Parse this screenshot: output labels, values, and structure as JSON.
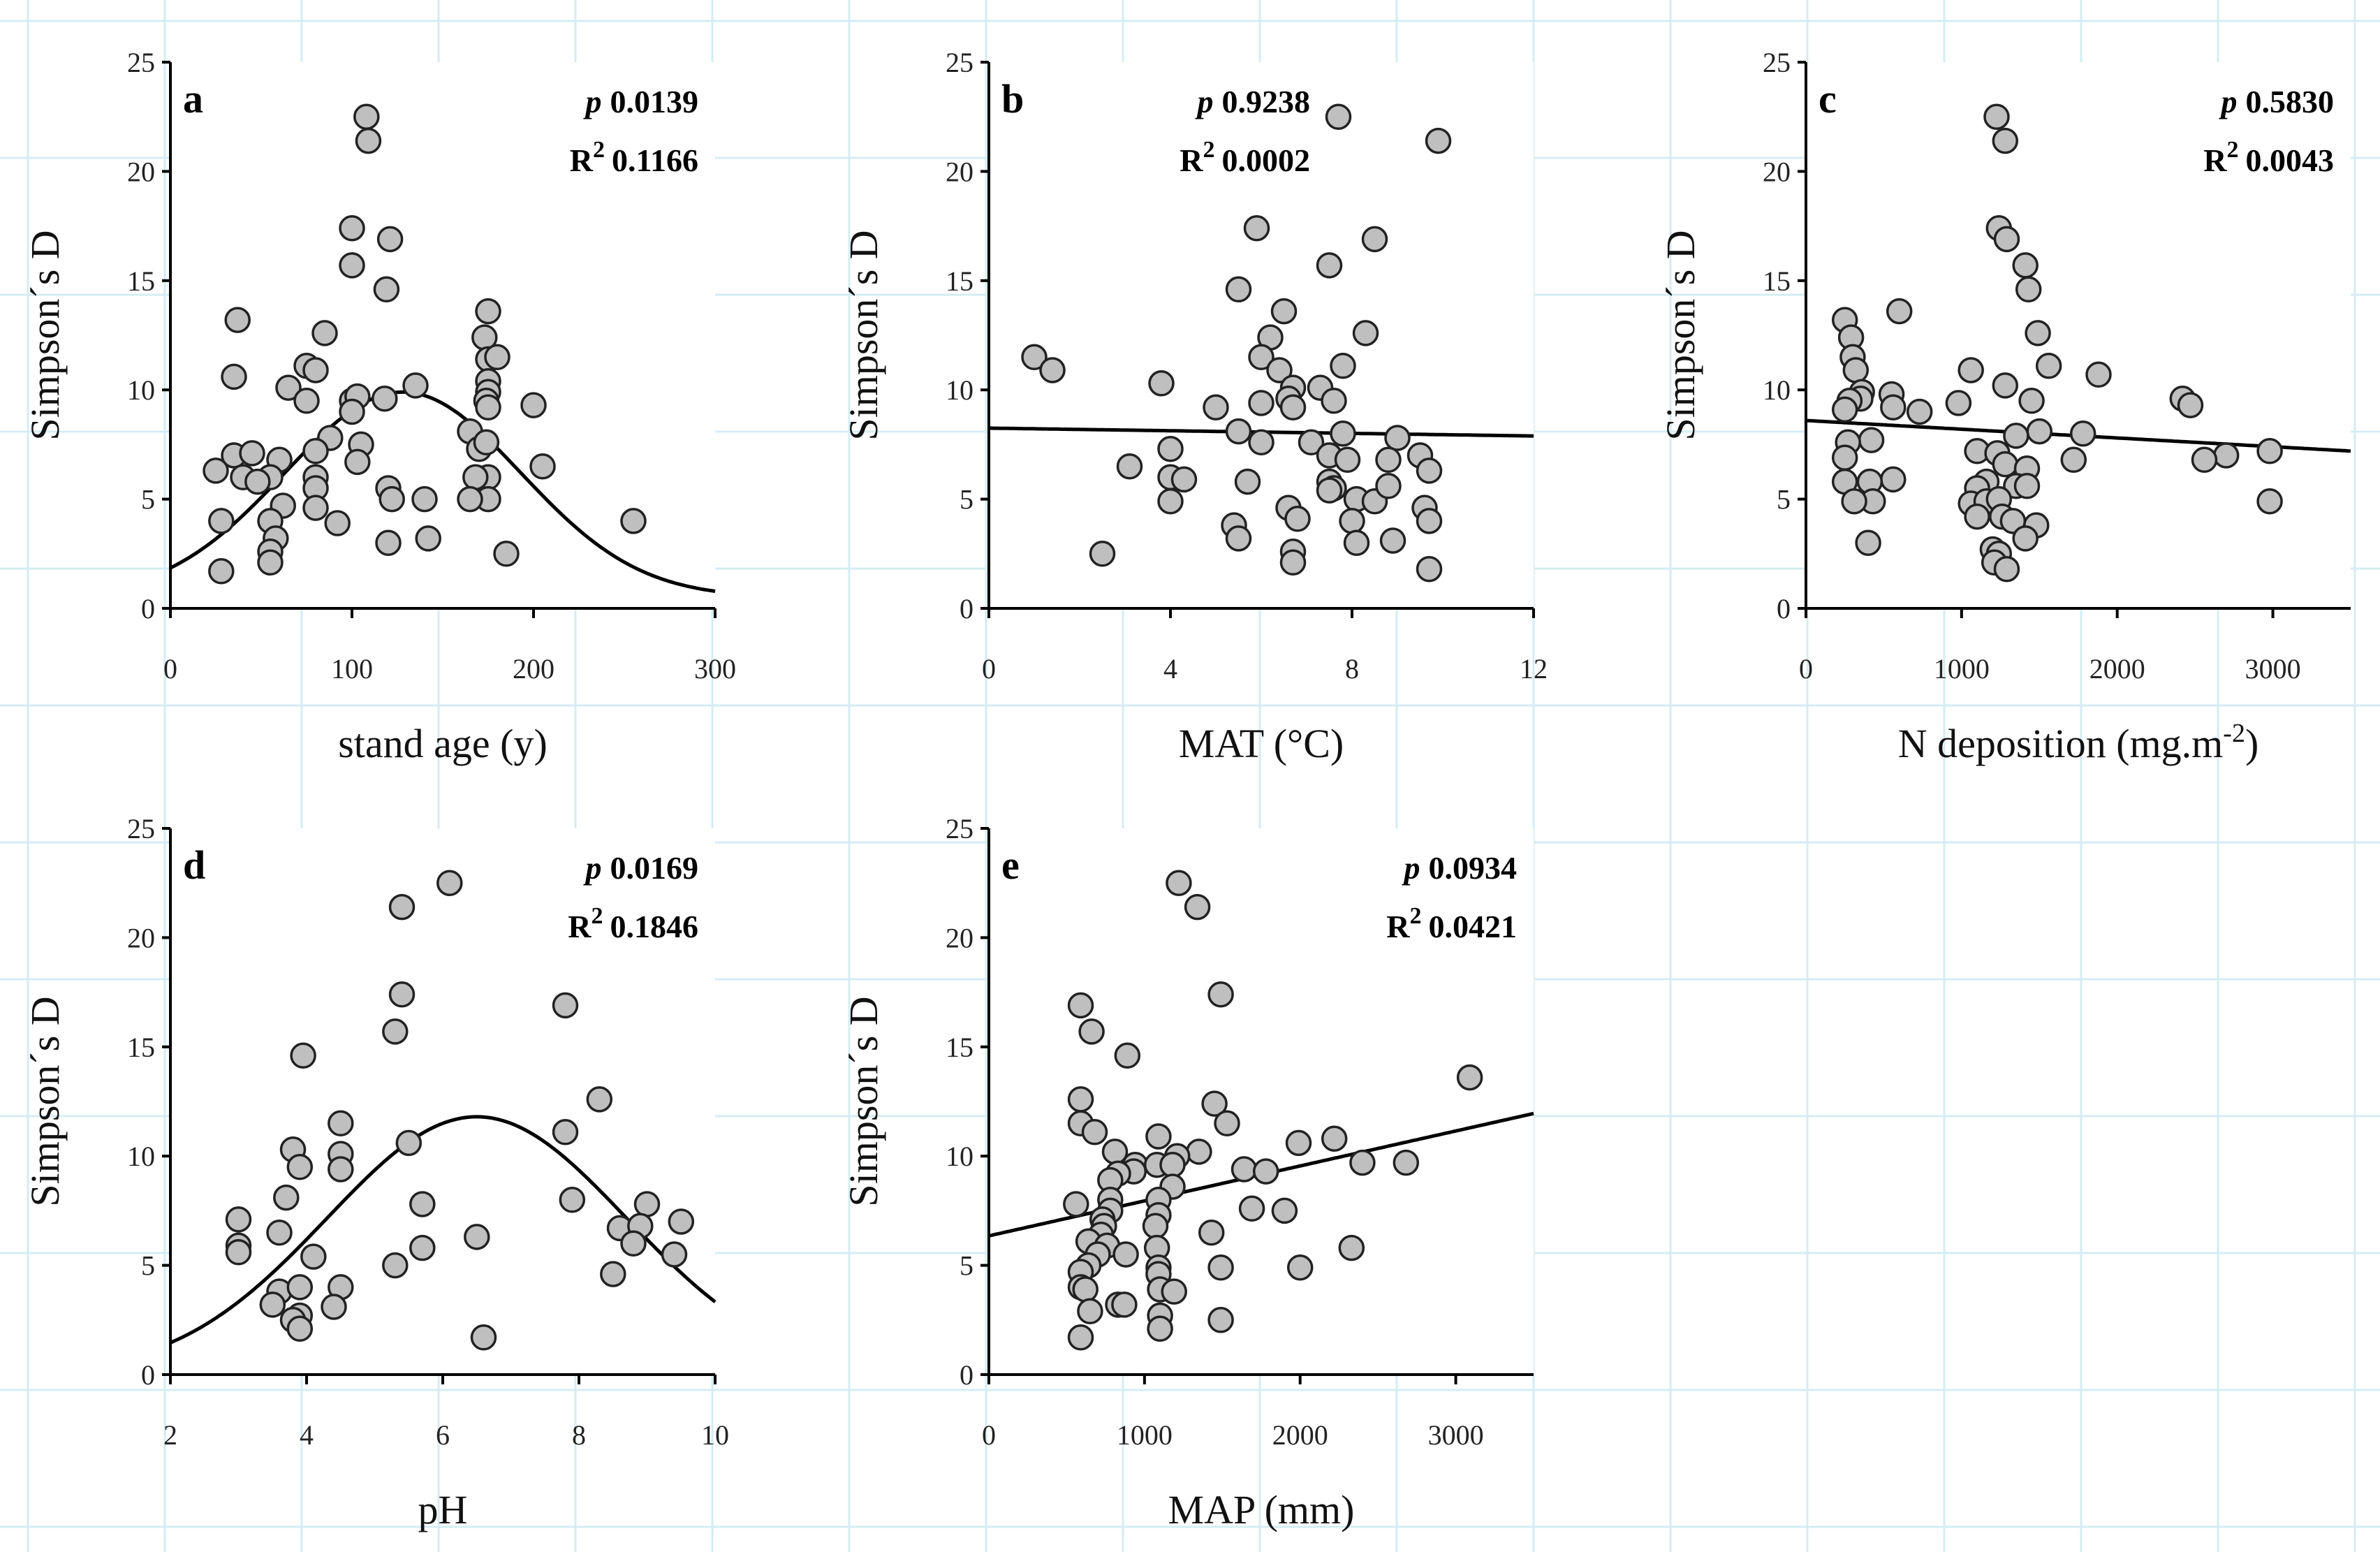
{
  "figure": {
    "background_grid_color": "#d4ecf4"
  },
  "chart_data": [
    {
      "panel": "a",
      "type": "scatter",
      "ylabel": "Simpson´s D",
      "xlabel": "stand age (y)",
      "xlim": [
        0,
        300
      ],
      "ylim": [
        0,
        25
      ],
      "xticks": [
        0,
        100,
        200,
        300
      ],
      "yticks": [
        0,
        5,
        10,
        15,
        20,
        25
      ],
      "stats": {
        "p_label": "p",
        "p_value": "0.0139",
        "r2_label": "R",
        "r2_exp": "2",
        "r2_value": "0.1166",
        "align": "right"
      },
      "fit": {
        "type": "gaussian",
        "y0": 0.5,
        "a": 9.4,
        "mu": 128,
        "sigma": 65
      },
      "points": [
        [
          108,
          22.5
        ],
        [
          109,
          21.4
        ],
        [
          100,
          17.4
        ],
        [
          121,
          16.9
        ],
        [
          100,
          15.7
        ],
        [
          119,
          14.6
        ],
        [
          37,
          13.2
        ],
        [
          175,
          13.6
        ],
        [
          173,
          12.4
        ],
        [
          85,
          12.6
        ],
        [
          35,
          10.6
        ],
        [
          175,
          11.4
        ],
        [
          180,
          11.5
        ],
        [
          75,
          11.1
        ],
        [
          80,
          10.9
        ],
        [
          65,
          10.1
        ],
        [
          135,
          10.2
        ],
        [
          175,
          10.4
        ],
        [
          175,
          9.9
        ],
        [
          174,
          9.5
        ],
        [
          175,
          9.2
        ],
        [
          100,
          9.5
        ],
        [
          118,
          9.6
        ],
        [
          103,
          9.7
        ],
        [
          75,
          9.5
        ],
        [
          200,
          9.3
        ],
        [
          100,
          9.0
        ],
        [
          165,
          8.1
        ],
        [
          88,
          7.8
        ],
        [
          105,
          7.5
        ],
        [
          80,
          7.2
        ],
        [
          170,
          7.3
        ],
        [
          174,
          7.6
        ],
        [
          35,
          7.0
        ],
        [
          45,
          7.1
        ],
        [
          205,
          6.5
        ],
        [
          60,
          6.8
        ],
        [
          103,
          6.7
        ],
        [
          25,
          6.3
        ],
        [
          40,
          6.0
        ],
        [
          55,
          6.0
        ],
        [
          48,
          5.8
        ],
        [
          80,
          6.0
        ],
        [
          120,
          5.5
        ],
        [
          175,
          6.0
        ],
        [
          168,
          6.0
        ],
        [
          80,
          5.5
        ],
        [
          62,
          4.7
        ],
        [
          80,
          4.6
        ],
        [
          122,
          5.0
        ],
        [
          140,
          5.0
        ],
        [
          175,
          5.0
        ],
        [
          255,
          4.0
        ],
        [
          28,
          4.0
        ],
        [
          55,
          4.0
        ],
        [
          92,
          3.9
        ],
        [
          58,
          3.2
        ],
        [
          120,
          3.0
        ],
        [
          142,
          3.2
        ],
        [
          55,
          2.6
        ],
        [
          55,
          2.1
        ],
        [
          185,
          2.5
        ],
        [
          28,
          1.7
        ],
        [
          165,
          5.0
        ]
      ]
    },
    {
      "panel": "b",
      "type": "scatter",
      "ylabel": "Simpson´s D",
      "xlabel": "MAT (°C)",
      "xlim": [
        0,
        12
      ],
      "ylim": [
        0,
        25
      ],
      "xticks": [
        0,
        4,
        8,
        12
      ],
      "yticks": [
        0,
        5,
        10,
        15,
        20,
        25
      ],
      "stats": {
        "p_label": "p",
        "p_value": "0.9238",
        "r2_label": "R",
        "r2_exp": "2",
        "r2_value": "0.0002",
        "align": "left"
      },
      "fit": {
        "type": "linear",
        "intercept": 8.25,
        "slope": -0.03
      },
      "points": [
        [
          7.7,
          22.5
        ],
        [
          9.9,
          21.4
        ],
        [
          5.9,
          17.4
        ],
        [
          8.5,
          16.9
        ],
        [
          7.5,
          15.7
        ],
        [
          5.5,
          14.6
        ],
        [
          6.5,
          13.6
        ],
        [
          8.3,
          12.6
        ],
        [
          6.2,
          12.4
        ],
        [
          1.0,
          11.5
        ],
        [
          6.0,
          11.5
        ],
        [
          1.4,
          10.9
        ],
        [
          6.4,
          10.9
        ],
        [
          7.8,
          11.1
        ],
        [
          3.8,
          10.3
        ],
        [
          6.7,
          10.1
        ],
        [
          7.3,
          10.1
        ],
        [
          6.6,
          9.6
        ],
        [
          7.6,
          9.5
        ],
        [
          5.0,
          9.2
        ],
        [
          6.7,
          9.2
        ],
        [
          6.0,
          9.4
        ],
        [
          5.5,
          8.1
        ],
        [
          7.8,
          8.0
        ],
        [
          9.0,
          7.8
        ],
        [
          6.0,
          7.6
        ],
        [
          7.1,
          7.6
        ],
        [
          4.0,
          7.3
        ],
        [
          7.5,
          7.0
        ],
        [
          7.9,
          6.8
        ],
        [
          9.5,
          7.0
        ],
        [
          8.8,
          6.8
        ],
        [
          9.7,
          6.3
        ],
        [
          3.1,
          6.5
        ],
        [
          4.0,
          6.0
        ],
        [
          4.3,
          5.9
        ],
        [
          5.7,
          5.8
        ],
        [
          7.5,
          5.8
        ],
        [
          7.6,
          5.5
        ],
        [
          7.5,
          5.4
        ],
        [
          8.1,
          5.0
        ],
        [
          8.5,
          4.9
        ],
        [
          8.8,
          5.6
        ],
        [
          4.0,
          4.9
        ],
        [
          6.6,
          4.6
        ],
        [
          6.8,
          4.1
        ],
        [
          9.6,
          4.6
        ],
        [
          5.4,
          3.8
        ],
        [
          8.0,
          4.0
        ],
        [
          9.7,
          4.0
        ],
        [
          5.5,
          3.2
        ],
        [
          8.1,
          3.0
        ],
        [
          8.9,
          3.1
        ],
        [
          2.5,
          2.5
        ],
        [
          6.7,
          2.6
        ],
        [
          6.7,
          2.1
        ],
        [
          9.7,
          1.8
        ]
      ]
    },
    {
      "panel": "c",
      "type": "scatter",
      "ylabel": "Simpson´s D",
      "xlabel": "N deposition (mg.m",
      "xlabel_sup": "-2",
      "xlabel_close": ")",
      "xlim": [
        0,
        3500
      ],
      "ylim": [
        0,
        25
      ],
      "xticks": [
        0,
        1000,
        2000,
        3000
      ],
      "yticks": [
        0,
        5,
        10,
        15,
        20,
        25
      ],
      "stats": {
        "p_label": "p",
        "p_value": "0.5830",
        "r2_label": "R",
        "r2_exp": "2",
        "r2_value": "0.0043",
        "align": "right"
      },
      "fit": {
        "type": "linear",
        "intercept": 8.6,
        "slope": -0.0004
      },
      "points": [
        [
          1225,
          22.5
        ],
        [
          1280,
          21.4
        ],
        [
          1240,
          17.4
        ],
        [
          1290,
          16.9
        ],
        [
          1410,
          15.7
        ],
        [
          1430,
          14.6
        ],
        [
          250,
          13.2
        ],
        [
          600,
          13.6
        ],
        [
          290,
          12.4
        ],
        [
          1490,
          12.6
        ],
        [
          300,
          11.5
        ],
        [
          1560,
          11.1
        ],
        [
          320,
          10.9
        ],
        [
          1060,
          10.9
        ],
        [
          1880,
          10.7
        ],
        [
          1280,
          10.2
        ],
        [
          360,
          9.9
        ],
        [
          550,
          9.8
        ],
        [
          350,
          9.6
        ],
        [
          2420,
          9.6
        ],
        [
          280,
          9.5
        ],
        [
          980,
          9.4
        ],
        [
          1450,
          9.5
        ],
        [
          2470,
          9.3
        ],
        [
          250,
          9.1
        ],
        [
          560,
          9.2
        ],
        [
          730,
          9.0
        ],
        [
          420,
          7.7
        ],
        [
          1500,
          8.1
        ],
        [
          1780,
          8.0
        ],
        [
          1350,
          7.9
        ],
        [
          270,
          7.6
        ],
        [
          1100,
          7.2
        ],
        [
          1230,
          7.1
        ],
        [
          2700,
          7.0
        ],
        [
          2980,
          7.2
        ],
        [
          1720,
          6.8
        ],
        [
          2560,
          6.8
        ],
        [
          250,
          6.9
        ],
        [
          1280,
          6.6
        ],
        [
          1420,
          6.4
        ],
        [
          560,
          5.9
        ],
        [
          410,
          5.8
        ],
        [
          250,
          5.8
        ],
        [
          1160,
          5.8
        ],
        [
          1100,
          5.5
        ],
        [
          1350,
          5.6
        ],
        [
          1420,
          5.6
        ],
        [
          1060,
          4.8
        ],
        [
          430,
          4.9
        ],
        [
          310,
          4.9
        ],
        [
          1160,
          4.9
        ],
        [
          1240,
          5.0
        ],
        [
          2980,
          4.9
        ],
        [
          1100,
          4.2
        ],
        [
          1260,
          4.2
        ],
        [
          1330,
          4.0
        ],
        [
          1480,
          3.8
        ],
        [
          400,
          3.0
        ],
        [
          1410,
          3.2
        ],
        [
          1200,
          2.7
        ],
        [
          1240,
          2.5
        ],
        [
          1210,
          2.1
        ],
        [
          1290,
          1.8
        ]
      ]
    },
    {
      "panel": "d",
      "type": "scatter",
      "ylabel": "Simpson´s D",
      "xlabel": "pH",
      "xlim": [
        2,
        10
      ],
      "ylim": [
        0,
        25
      ],
      "xticks": [
        2,
        4,
        6,
        8,
        10
      ],
      "yticks": [
        0,
        5,
        10,
        15,
        20,
        25
      ],
      "stats": {
        "p_label": "p",
        "p_value": "0.0169",
        "r2_label": "R",
        "r2_exp": "2",
        "r2_value": "0.1846",
        "align": "right"
      },
      "fit": {
        "type": "gaussian",
        "y0": 0,
        "a": 11.8,
        "mu": 6.5,
        "sigma": 2.2
      },
      "points": [
        [
          6.1,
          22.5
        ],
        [
          5.4,
          21.4
        ],
        [
          5.4,
          17.4
        ],
        [
          7.8,
          16.9
        ],
        [
          5.3,
          15.7
        ],
        [
          3.95,
          14.6
        ],
        [
          8.3,
          12.6
        ],
        [
          4.5,
          11.5
        ],
        [
          7.8,
          11.1
        ],
        [
          5.5,
          10.6
        ],
        [
          3.8,
          10.3
        ],
        [
          4.5,
          10.1
        ],
        [
          3.9,
          9.5
        ],
        [
          4.5,
          9.4
        ],
        [
          3.7,
          8.1
        ],
        [
          7.9,
          8.0
        ],
        [
          5.7,
          7.8
        ],
        [
          9.0,
          7.8
        ],
        [
          3.0,
          7.1
        ],
        [
          9.5,
          7.0
        ],
        [
          8.6,
          6.7
        ],
        [
          8.9,
          6.8
        ],
        [
          3.6,
          6.5
        ],
        [
          6.5,
          6.3
        ],
        [
          3.0,
          5.9
        ],
        [
          3.0,
          5.6
        ],
        [
          5.7,
          5.8
        ],
        [
          8.8,
          6.0
        ],
        [
          9.4,
          5.5
        ],
        [
          4.1,
          5.4
        ],
        [
          5.3,
          5.0
        ],
        [
          8.5,
          4.6
        ],
        [
          3.6,
          3.8
        ],
        [
          3.9,
          4.0
        ],
        [
          4.5,
          4.0
        ],
        [
          3.5,
          3.2
        ],
        [
          4.4,
          3.1
        ],
        [
          3.9,
          2.7
        ],
        [
          3.8,
          2.5
        ],
        [
          3.9,
          2.1
        ],
        [
          6.6,
          1.7
        ]
      ]
    },
    {
      "panel": "e",
      "type": "scatter",
      "ylabel": "Simpson´s D",
      "xlabel": "MAP (mm)",
      "xlim": [
        0,
        3500
      ],
      "ylim": [
        0,
        25
      ],
      "xticks": [
        0,
        1000,
        2000,
        3000
      ],
      "yticks": [
        0,
        5,
        10,
        15,
        20,
        25
      ],
      "stats": {
        "p_label": "p",
        "p_value": "0.0934",
        "r2_label": "R",
        "r2_exp": "2",
        "r2_value": "0.0421",
        "align": "right"
      },
      "fit": {
        "type": "linear",
        "intercept": 6.35,
        "slope": 0.0016
      },
      "points": [
        [
          1220,
          22.5
        ],
        [
          1340,
          21.4
        ],
        [
          1490,
          17.4
        ],
        [
          590,
          16.9
        ],
        [
          660,
          15.7
        ],
        [
          890,
          14.6
        ],
        [
          3090,
          13.6
        ],
        [
          590,
          12.6
        ],
        [
          1450,
          12.4
        ],
        [
          590,
          11.5
        ],
        [
          1530,
          11.5
        ],
        [
          680,
          11.1
        ],
        [
          1090,
          10.9
        ],
        [
          1990,
          10.6
        ],
        [
          2220,
          10.8
        ],
        [
          810,
          10.2
        ],
        [
          1350,
          10.2
        ],
        [
          1210,
          10.0
        ],
        [
          940,
          9.6
        ],
        [
          1080,
          9.6
        ],
        [
          1640,
          9.4
        ],
        [
          1780,
          9.3
        ],
        [
          1180,
          9.6
        ],
        [
          2400,
          9.7
        ],
        [
          2680,
          9.7
        ],
        [
          930,
          9.3
        ],
        [
          830,
          9.2
        ],
        [
          780,
          8.9
        ],
        [
          1180,
          8.6
        ],
        [
          780,
          8.0
        ],
        [
          1090,
          8.0
        ],
        [
          1690,
          7.6
        ],
        [
          1900,
          7.5
        ],
        [
          560,
          7.8
        ],
        [
          780,
          7.5
        ],
        [
          730,
          7.1
        ],
        [
          1090,
          7.3
        ],
        [
          740,
          6.8
        ],
        [
          1070,
          6.8
        ],
        [
          720,
          6.4
        ],
        [
          1430,
          6.5
        ],
        [
          640,
          6.1
        ],
        [
          760,
          5.9
        ],
        [
          1080,
          5.8
        ],
        [
          2330,
          5.8
        ],
        [
          700,
          5.5
        ],
        [
          880,
          5.5
        ],
        [
          640,
          5.0
        ],
        [
          1090,
          4.9
        ],
        [
          1490,
          4.9
        ],
        [
          2000,
          4.9
        ],
        [
          590,
          4.7
        ],
        [
          1090,
          4.6
        ],
        [
          590,
          4.0
        ],
        [
          620,
          3.9
        ],
        [
          1100,
          3.9
        ],
        [
          1190,
          3.8
        ],
        [
          830,
          3.2
        ],
        [
          870,
          3.2
        ],
        [
          650,
          2.9
        ],
        [
          1100,
          2.7
        ],
        [
          1490,
          2.5
        ],
        [
          1100,
          2.1
        ],
        [
          590,
          1.7
        ]
      ]
    }
  ]
}
